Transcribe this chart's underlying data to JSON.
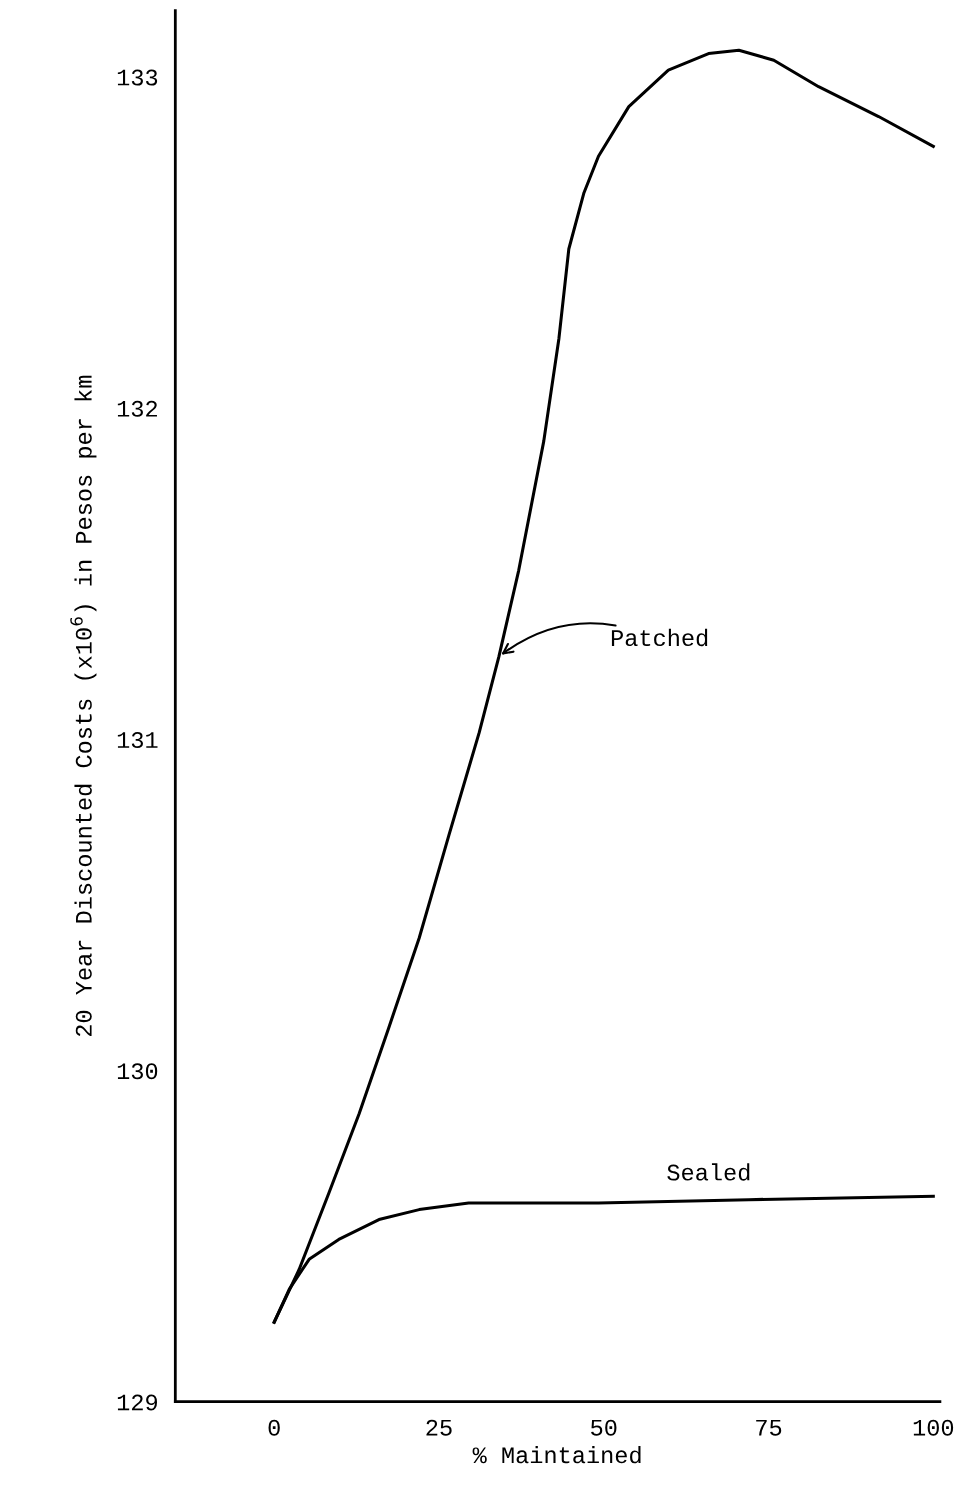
{
  "chart_data": {
    "type": "line",
    "xlabel": "% Maintained",
    "ylabel": "20 Year Discounted Costs (x10$^{6}$) in Pesos per km",
    "xlim": [
      -15,
      101
    ],
    "ylim": [
      129,
      133.2
    ],
    "xticks": [
      0,
      25,
      50,
      75,
      100
    ],
    "yticks": [
      129,
      130,
      131,
      132,
      133
    ],
    "grid": false,
    "legend": false,
    "marker": "none",
    "line_style": "solid",
    "series": [
      {
        "color": "#000000",
        "x": [
          0,
          3.8,
          8.3,
          12.9,
          17.4,
          22,
          26.5,
          31.1,
          34.1,
          37.1,
          40.9,
          43.2,
          44.7,
          47,
          49.2,
          53.8,
          59.8,
          65.9,
          70.5,
          75.8,
          82.6,
          91.7,
          100
        ],
        "values": [
          129.24,
          129.4,
          129.63,
          129.87,
          130.13,
          130.4,
          130.71,
          131.02,
          131.25,
          131.51,
          131.9,
          132.21,
          132.48,
          132.65,
          132.76,
          132.91,
          133.02,
          133.07,
          133.08,
          133.05,
          132.97,
          132.88,
          132.79
        ]
      },
      {
        "color": "#000000",
        "x": [
          0,
          2.3,
          5.3,
          9.8,
          15.9,
          22,
          29.5,
          49.2,
          72,
          100
        ],
        "values": [
          129.24,
          129.34,
          129.43,
          129.49,
          129.55,
          129.58,
          129.6,
          129.6,
          129.61,
          129.62
        ]
      }
    ],
    "annotations": [
      {
        "text": "Patched",
        "x": 34.1,
        "y": 131.25
      },
      {
        "text": "Sealed",
        "x": 59.5,
        "y": 129.62
      }
    ]
  }
}
